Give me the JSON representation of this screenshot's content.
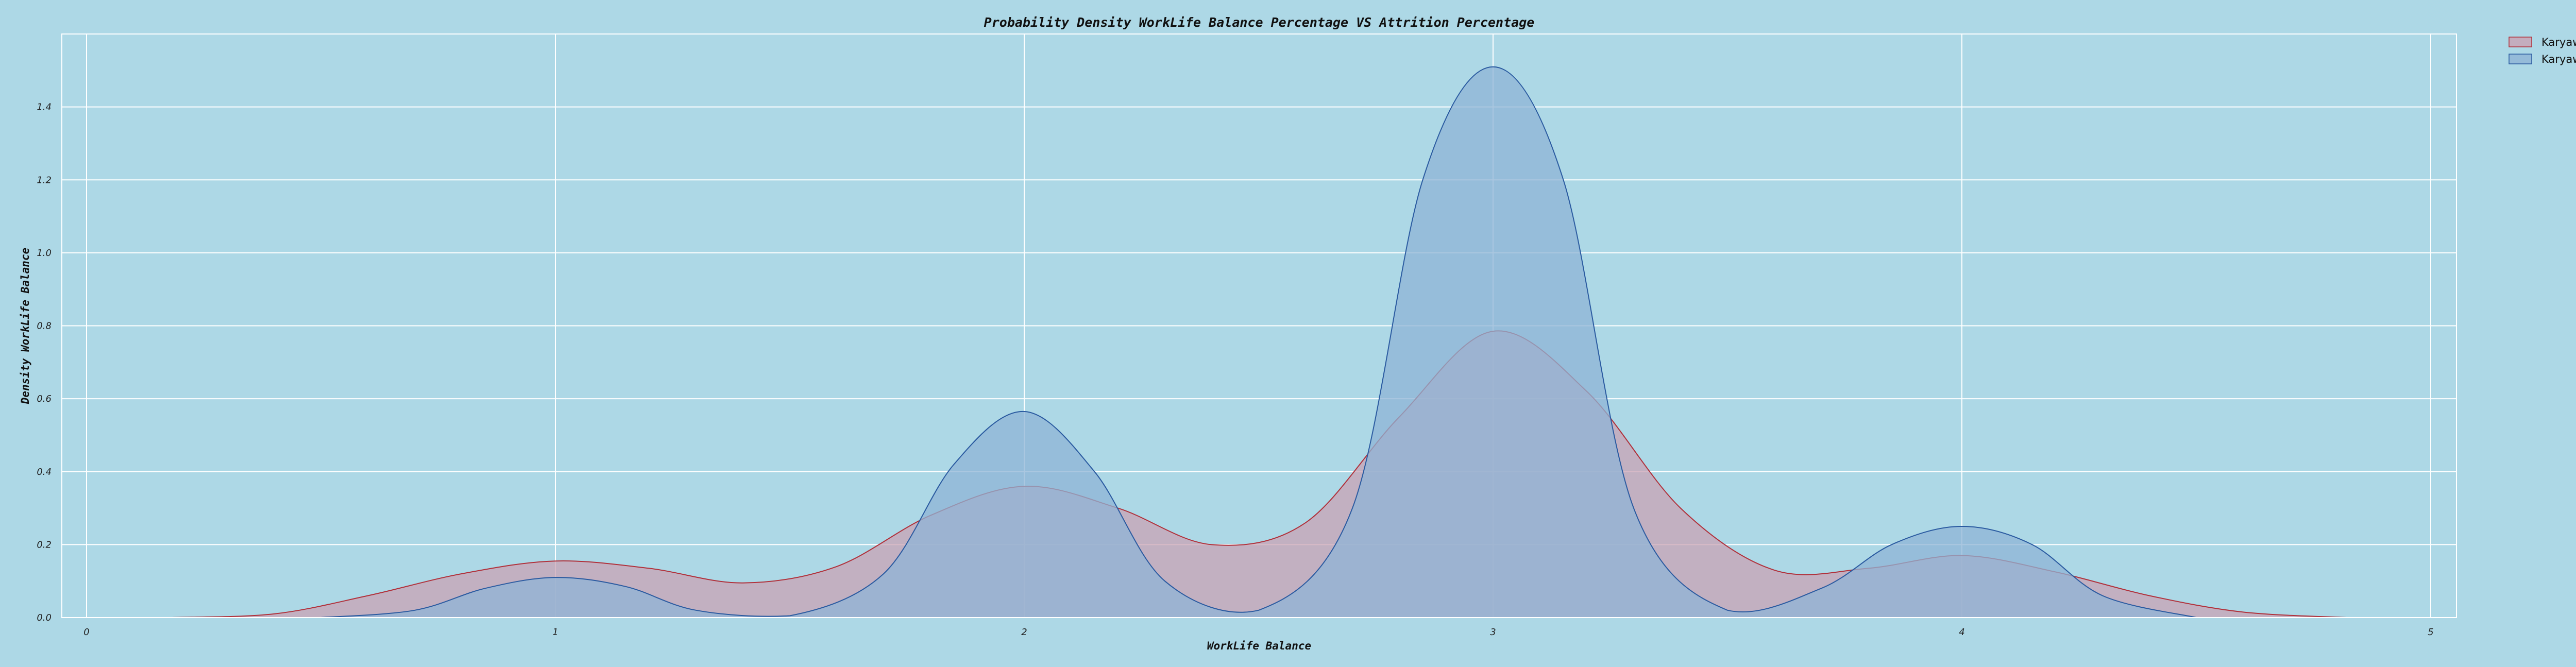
{
  "chart_data": {
    "type": "area",
    "title": "Probability Density WorkLife Balance Percentage VS Attrition Percentage",
    "xlabel": "WorkLife Balance",
    "ylabel": "Density WorkLife Balance",
    "xlim": [
      0,
      5
    ],
    "ylim": [
      0,
      1.6
    ],
    "x_ticks": [
      "0",
      "1",
      "2",
      "3",
      "4",
      "5"
    ],
    "y_ticks": [
      "0.0",
      "0.2",
      "0.4",
      "0.6",
      "0.8",
      "1.0",
      "1.2",
      "1.4"
    ],
    "grid": true,
    "legend_position": "top-right outside",
    "series": [
      {
        "name": "Karyawan Resign",
        "color": "#b0303a",
        "fill": "#c9a3b4",
        "x": [
          0.18,
          0.4,
          0.6,
          0.8,
          1.0,
          1.2,
          1.4,
          1.6,
          1.8,
          2.0,
          2.2,
          2.4,
          2.6,
          2.8,
          3.0,
          3.2,
          3.4,
          3.6,
          3.8,
          4.0,
          4.2,
          4.4,
          4.6,
          4.82
        ],
        "values": [
          0.0,
          0.01,
          0.06,
          0.12,
          0.155,
          0.135,
          0.095,
          0.14,
          0.28,
          0.36,
          0.3,
          0.2,
          0.26,
          0.55,
          0.785,
          0.62,
          0.3,
          0.13,
          0.135,
          0.17,
          0.125,
          0.06,
          0.015,
          0.0
        ]
      },
      {
        "name": "Karyawan Tidak Resign",
        "color": "#2a5aa0",
        "fill": "#8fb4d6",
        "x": [
          0.5,
          0.7,
          0.85,
          1.0,
          1.15,
          1.3,
          1.5,
          1.7,
          1.85,
          2.0,
          2.15,
          2.3,
          2.5,
          2.7,
          2.85,
          3.0,
          3.15,
          3.3,
          3.5,
          3.7,
          3.85,
          4.0,
          4.15,
          4.3,
          4.5
        ],
        "values": [
          0.0,
          0.02,
          0.08,
          0.11,
          0.085,
          0.02,
          0.005,
          0.12,
          0.42,
          0.565,
          0.4,
          0.1,
          0.02,
          0.3,
          1.2,
          1.51,
          1.2,
          0.3,
          0.02,
          0.08,
          0.2,
          0.25,
          0.2,
          0.06,
          0.0
        ]
      }
    ]
  }
}
